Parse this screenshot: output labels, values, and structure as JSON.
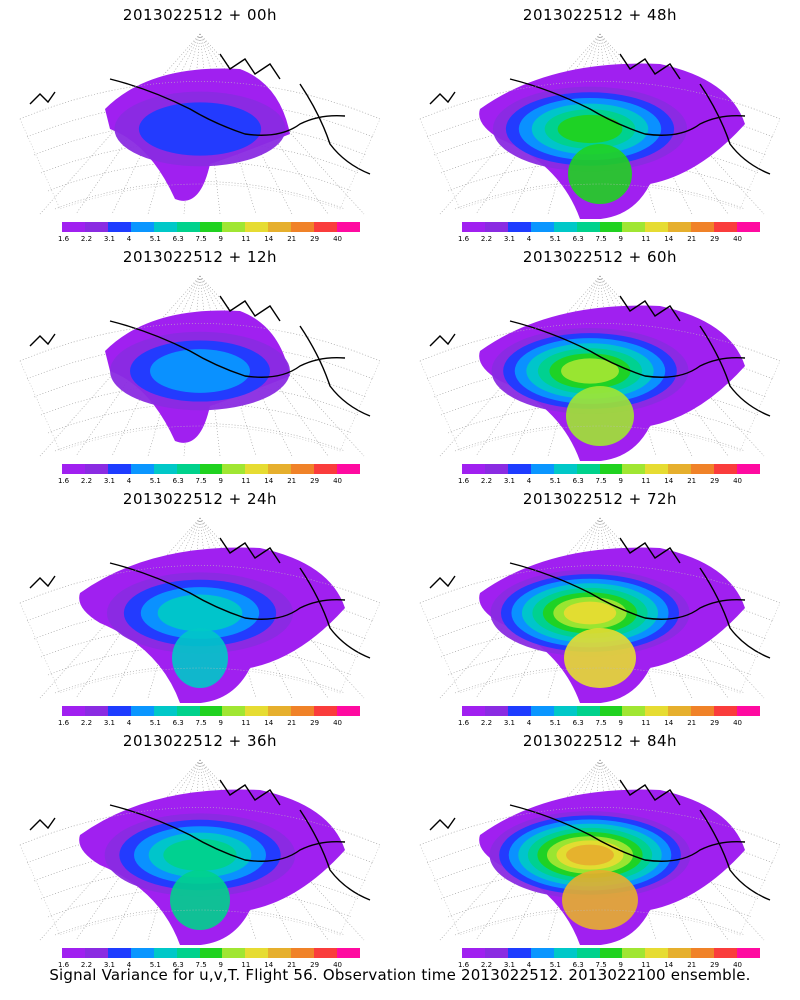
{
  "panels": [
    {
      "title": "2013022512 + 00h",
      "stage": 0
    },
    {
      "title": "2013022512 + 48h",
      "stage": 4
    },
    {
      "title": "2013022512 + 12h",
      "stage": 1
    },
    {
      "title": "2013022512 + 60h",
      "stage": 5
    },
    {
      "title": "2013022512 + 24h",
      "stage": 2
    },
    {
      "title": "2013022512 + 72h",
      "stage": 6
    },
    {
      "title": "2013022512 + 36h",
      "stage": 3
    },
    {
      "title": "2013022512 + 84h",
      "stage": 7
    }
  ],
  "colorbar": {
    "colors": [
      "#a020f0",
      "#8a2be2",
      "#1e3cff",
      "#0a96ff",
      "#00c8c8",
      "#00d28c",
      "#20d220",
      "#a0e632",
      "#e6dc32",
      "#e6af2d",
      "#f08228",
      "#fa3c3c",
      "#ff0aa0"
    ],
    "labels": [
      "1.6",
      "2.2",
      "3.1",
      "4",
      "5.1",
      "6.3",
      "7.5",
      "9",
      "11",
      "14",
      "21",
      "29",
      "40"
    ]
  },
  "caption": "Signal Variance for u,v,T. Flight 56. Observation time 2013022512. 2013022100 ensemble."
}
